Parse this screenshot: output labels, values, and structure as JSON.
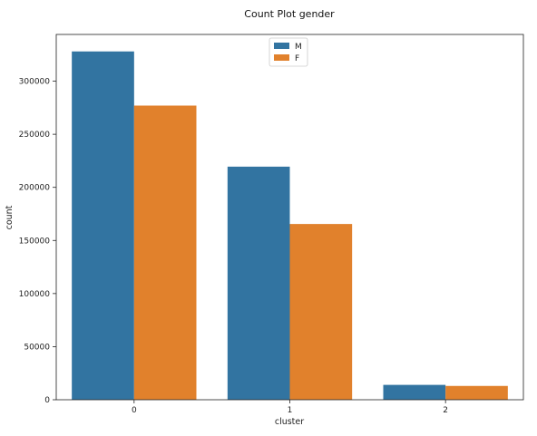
{
  "chart_data": {
    "type": "bar",
    "title": "Count Plot gender",
    "xlabel": "cluster",
    "ylabel": "count",
    "categories": [
      "0",
      "1",
      "2"
    ],
    "series": [
      {
        "name": "M",
        "color": "#3274a1",
        "values": [
          328000,
          219500,
          14000
        ]
      },
      {
        "name": "F",
        "color": "#e1812c",
        "values": [
          277000,
          165500,
          13000
        ]
      }
    ],
    "ylim": [
      0,
      344000
    ],
    "yticks": [
      0,
      50000,
      100000,
      150000,
      200000,
      250000,
      300000
    ],
    "ytick_labels": [
      "0",
      "50000",
      "100000",
      "150000",
      "200000",
      "250000",
      "300000"
    ],
    "grid": false,
    "legend": "top-center"
  }
}
